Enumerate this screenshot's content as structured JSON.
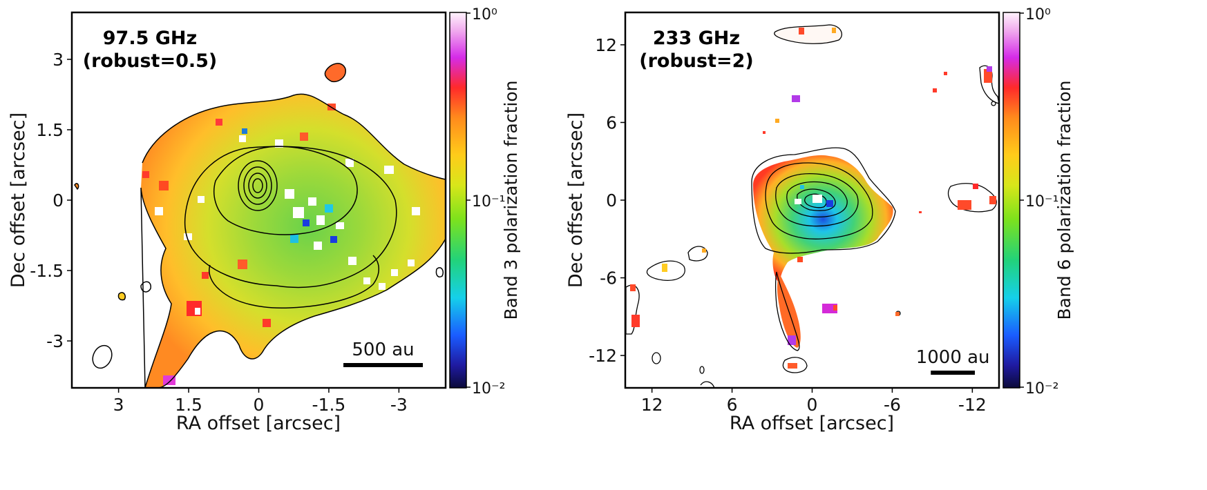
{
  "chart_data": [
    {
      "type": "heatmap",
      "title_line1": "97.5 GHz",
      "title_line2": "(robust=0.5)",
      "xlabel": "RA offset [arcsec]",
      "ylabel": "Dec offset [arcsec]",
      "xlim": [
        4.0,
        -4.0
      ],
      "ylim": [
        -4.0,
        4.0
      ],
      "x_ticks": [
        3,
        1.5,
        0,
        -1.5,
        -3
      ],
      "x_tick_labels": [
        "3",
        "1.5",
        "0",
        "-1.5",
        "-3"
      ],
      "y_ticks": [
        3,
        1.5,
        0,
        -1.5,
        -3
      ],
      "y_tick_labels": [
        "3",
        "1.5",
        "0",
        "-1.5",
        "-3"
      ],
      "scalebar_label": "500 au",
      "scalebar_arcsec": 1.7,
      "colorbar_label": "Band 3 polarization fraction",
      "colorbar_range": [
        0.01,
        1.0
      ],
      "colorbar_scale": "log",
      "colorbar_ticks": [
        "10⁰",
        "10⁻¹",
        "10⁻²"
      ],
      "peak_offset": [
        0.0,
        0.3
      ]
    },
    {
      "type": "heatmap",
      "title_line1": "233 GHz",
      "title_line2": "(robust=2)",
      "xlabel": "RA offset [arcsec]",
      "ylabel": "Dec offset [arcsec]",
      "xlim": [
        14.0,
        -14.0
      ],
      "ylim": [
        -14.5,
        14.5
      ],
      "x_ticks": [
        12,
        6,
        0,
        -6,
        -12
      ],
      "x_tick_labels": [
        "12",
        "6",
        "0",
        "-6",
        "-12"
      ],
      "y_ticks": [
        12,
        6,
        0,
        -6,
        -12
      ],
      "y_tick_labels": [
        "12",
        "6",
        "0",
        "-6",
        "-12"
      ],
      "scalebar_label": "1000 au",
      "scalebar_arcsec": 3.3,
      "colorbar_label": "Band 6 polarization fraction",
      "colorbar_range": [
        0.01,
        1.0
      ],
      "colorbar_scale": "log",
      "colorbar_ticks": [
        "10⁰",
        "10⁻¹",
        "10⁻²"
      ],
      "peak_offset": [
        0.0,
        0.0
      ]
    }
  ]
}
